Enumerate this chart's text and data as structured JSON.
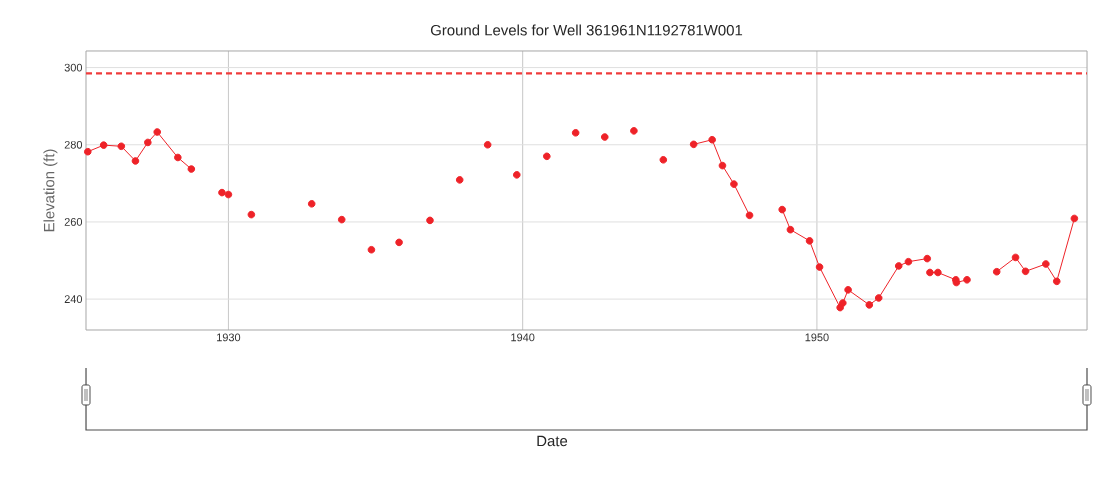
{
  "chart_data": {
    "type": "line",
    "title": "Ground Levels for Well 361961N1192781W001",
    "annotations": [
      "Date"
    ],
    "ylabel": "Elevation (ft)",
    "xlim": [
      1925.16,
      1959.18
    ],
    "ylim": [
      232,
      304.3
    ],
    "xticks": [
      1930,
      1940,
      1950
    ],
    "yticks": [
      240,
      260,
      280,
      300
    ],
    "grid": true,
    "marker": "circle",
    "line_style": "solid",
    "ref_lines": [
      {
        "axis": "y",
        "value": 298.5,
        "color": "#ef3b3b",
        "line_style": "dashed"
      }
    ],
    "series": [
      {
        "color": "#ee2228",
        "x": [
          1925.22,
          1925.76,
          1926.36,
          1926.84,
          1927.26,
          1927.58,
          1928.28,
          1928.74,
          null,
          1929.78,
          null,
          1930.0,
          null,
          1930.78,
          null,
          1932.83,
          null,
          1933.85,
          null,
          1934.86,
          null,
          1935.8,
          null,
          1936.85,
          null,
          1937.86,
          null,
          1938.81,
          null,
          1939.8,
          null,
          1940.82,
          null,
          1941.8,
          null,
          1942.79,
          null,
          1943.78,
          null,
          1944.78,
          null,
          1945.81,
          1946.44,
          1946.79,
          1947.18,
          1947.71,
          null,
          1948.82,
          1949.1,
          1949.75,
          1950.09,
          1950.79,
          1950.88,
          1951.06,
          1951.78,
          1952.1,
          1952.78,
          1953.11,
          1953.75,
          null,
          1953.84,
          1954.11,
          1954.72,
          1954.74,
          1955.1,
          null,
          1956.11,
          1956.75,
          1957.09,
          1957.78,
          1958.15,
          1958.75
        ],
        "values": [
          278.2,
          279.9,
          279.6,
          275.8,
          280.6,
          283.3,
          276.7,
          273.7,
          null,
          267.6,
          null,
          267.1,
          null,
          261.9,
          null,
          264.7,
          null,
          260.6,
          null,
          252.8,
          null,
          254.7,
          null,
          260.4,
          null,
          270.9,
          null,
          280.0,
          null,
          272.2,
          null,
          277.0,
          null,
          283.1,
          null,
          282.0,
          null,
          283.6,
          null,
          276.1,
          null,
          280.1,
          281.3,
          274.6,
          269.8,
          261.7,
          null,
          263.2,
          258.0,
          255.1,
          248.3,
          237.8,
          239.0,
          242.4,
          238.5,
          240.3,
          248.6,
          249.7,
          250.5,
          null,
          246.9,
          246.9,
          245.0,
          244.3,
          245.0,
          null,
          247.1,
          250.8,
          247.2,
          249.1,
          244.6,
          260.9
        ]
      }
    ]
  }
}
